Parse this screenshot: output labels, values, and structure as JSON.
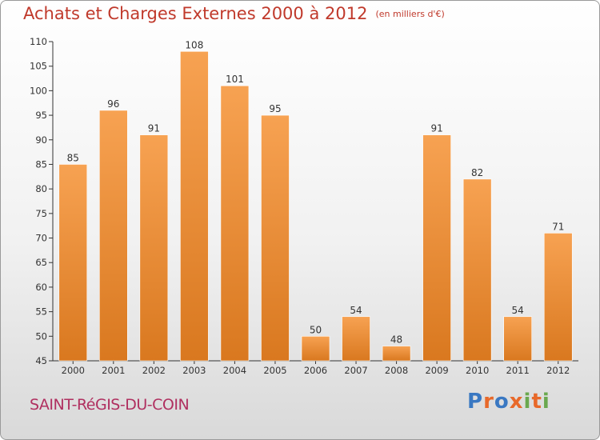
{
  "colors": {
    "title": "#c0392b",
    "commune": "#b03060",
    "bar_light": "#f7a252",
    "bar_dark": "#d9781f",
    "axis": "#333333"
  },
  "header": {
    "title": "Achats et Charges Externes 2000 à 2012",
    "unit": "(en milliers d'€)"
  },
  "footer": {
    "commune": "SAINT-RéGIS-DU-COIN",
    "logo_letters": [
      {
        "ch": "P",
        "color": "#3a78c2"
      },
      {
        "ch": "r",
        "color": "#e8692a"
      },
      {
        "ch": "o",
        "color": "#3a78c2"
      },
      {
        "ch": "x",
        "color": "#e8692a"
      },
      {
        "ch": "i",
        "color": "#6aa84f"
      },
      {
        "ch": "t",
        "color": "#e8692a"
      },
      {
        "ch": "i",
        "color": "#6aa84f"
      }
    ]
  },
  "chart_data": {
    "type": "bar",
    "title": "Achats et Charges Externes 2000 à 2012",
    "categories": [
      "2000",
      "2001",
      "2002",
      "2003",
      "2004",
      "2005",
      "2006",
      "2007",
      "2008",
      "2009",
      "2010",
      "2011",
      "2012"
    ],
    "values": [
      85,
      96,
      91,
      108,
      101,
      95,
      50,
      54,
      48,
      91,
      82,
      54,
      71
    ],
    "ylim": [
      45,
      110
    ],
    "yticks": [
      45,
      50,
      55,
      60,
      65,
      70,
      75,
      80,
      85,
      90,
      95,
      100,
      105,
      110
    ],
    "grid": false,
    "legend": "none"
  }
}
